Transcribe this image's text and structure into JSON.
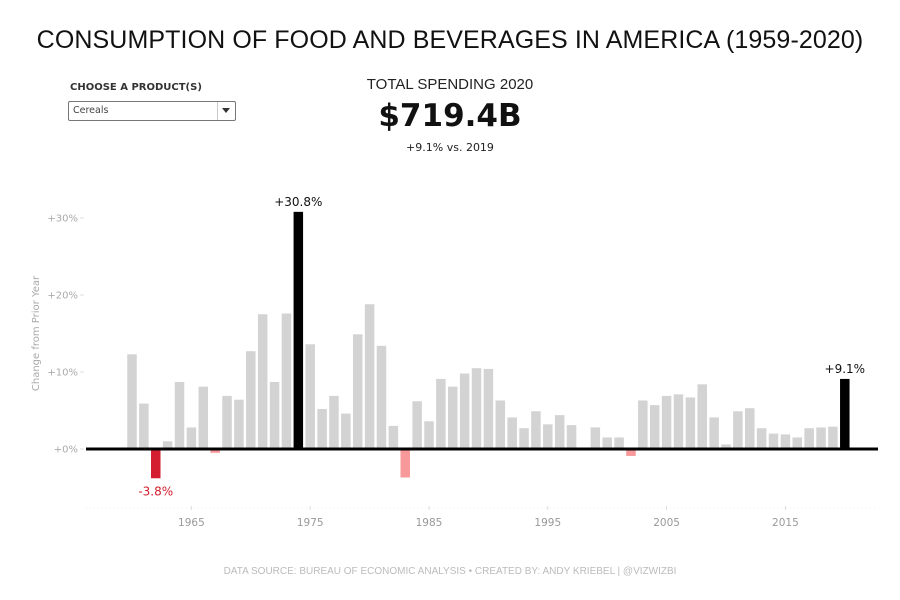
{
  "title": "CONSUMPTION OF FOOD AND BEVERAGES IN AMERICA (1959-2020)",
  "filter": {
    "label": "CHOOSE A PRODUCT(S)",
    "selected": "Cereals"
  },
  "kpi": {
    "label": "TOTAL SPENDING 2020",
    "value": "$719.4B",
    "change": "+9.1% vs. 2019"
  },
  "footer": "DATA SOURCE: BUREAU OF ECONOMIC ANALYSIS  •  CREATED BY: ANDY KRIEBEL | @VIZWIZBI",
  "colors": {
    "bar_default": "#d3d3d3",
    "bar_highlight": "#000000",
    "bar_min": "#d31f2f",
    "bar_negative": "#f7999a",
    "baseline": "#000000",
    "min_label": "#d31f2f"
  },
  "chart_data": {
    "type": "bar",
    "title": "",
    "xlabel": "",
    "ylabel": "Change from Prior Year",
    "ylim": [
      -7,
      33
    ],
    "y_ticks": [
      0,
      10,
      20,
      30
    ],
    "y_tick_labels": [
      "+0%",
      "+10%",
      "+20%",
      "+30%"
    ],
    "x_tick_labels": [
      "1965",
      "1975",
      "1985",
      "1995",
      "2005",
      "2015"
    ],
    "grid": false,
    "x": [
      1960,
      1961,
      1962,
      1963,
      1964,
      1965,
      1966,
      1967,
      1968,
      1969,
      1970,
      1971,
      1972,
      1973,
      1974,
      1975,
      1976,
      1977,
      1978,
      1979,
      1980,
      1981,
      1982,
      1983,
      1984,
      1985,
      1986,
      1987,
      1988,
      1989,
      1990,
      1991,
      1992,
      1993,
      1994,
      1995,
      1996,
      1997,
      1998,
      1999,
      2000,
      2001,
      2002,
      2003,
      2004,
      2005,
      2006,
      2007,
      2008,
      2009,
      2010,
      2011,
      2012,
      2013,
      2014,
      2015,
      2016,
      2017,
      2018,
      2019,
      2020
    ],
    "values": [
      12.3,
      5.9,
      -3.8,
      1.0,
      8.7,
      2.8,
      8.1,
      -0.5,
      6.9,
      6.4,
      12.7,
      17.5,
      8.7,
      17.6,
      30.8,
      13.6,
      5.2,
      6.9,
      4.6,
      14.9,
      18.8,
      13.4,
      3.0,
      -3.7,
      6.2,
      3.6,
      9.1,
      8.1,
      9.8,
      10.5,
      10.4,
      6.3,
      4.1,
      2.7,
      4.9,
      3.2,
      4.4,
      3.1,
      0.0,
      2.8,
      1.5,
      1.5,
      -0.9,
      6.3,
      5.7,
      6.9,
      7.1,
      6.7,
      8.4,
      4.1,
      0.6,
      4.9,
      5.3,
      2.7,
      2.0,
      1.9,
      1.5,
      2.7,
      2.8,
      2.9,
      9.1
    ],
    "annotations": [
      {
        "x": 1974,
        "label": "+30.8%",
        "type": "max"
      },
      {
        "x": 2020,
        "label": "+9.1%",
        "type": "latest"
      },
      {
        "x": 1962,
        "label": "-3.8%",
        "type": "min"
      }
    ]
  }
}
